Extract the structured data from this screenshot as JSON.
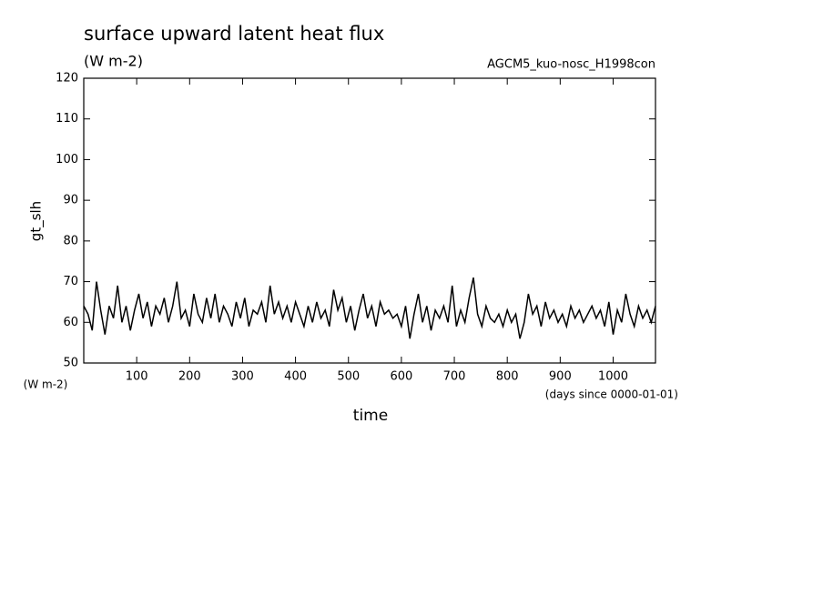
{
  "chart_data": {
    "type": "line",
    "title": "surface upward latent heat flux",
    "subtitle": "(W m-2)",
    "annotation": "AGCM5_kuo-nosc_H1998con",
    "ylabel": "gt_slh",
    "ylabel_units": "(W m-2)",
    "xlabel": "time",
    "xlabel_units": "(days since 0000-01-01)",
    "xlim": [
      0,
      1080
    ],
    "ylim": [
      50,
      120
    ],
    "xticks": [
      100,
      200,
      300,
      400,
      500,
      600,
      700,
      800,
      900,
      1000
    ],
    "yticks": [
      50,
      60,
      70,
      80,
      90,
      100,
      110,
      120
    ],
    "color": "#000000",
    "x": [
      0,
      8,
      16,
      24,
      32,
      40,
      48,
      56,
      64,
      72,
      80,
      88,
      96,
      104,
      112,
      120,
      128,
      136,
      144,
      152,
      160,
      168,
      176,
      184,
      192,
      200,
      208,
      216,
      224,
      232,
      240,
      248,
      256,
      264,
      272,
      280,
      288,
      296,
      304,
      312,
      320,
      328,
      336,
      344,
      352,
      360,
      368,
      376,
      384,
      392,
      400,
      408,
      416,
      424,
      432,
      440,
      448,
      456,
      464,
      472,
      480,
      488,
      496,
      504,
      512,
      520,
      528,
      536,
      544,
      552,
      560,
      568,
      576,
      584,
      592,
      600,
      608,
      616,
      624,
      632,
      640,
      648,
      656,
      664,
      672,
      680,
      688,
      696,
      704,
      712,
      720,
      728,
      736,
      744,
      752,
      760,
      768,
      776,
      784,
      792,
      800,
      808,
      816,
      824,
      832,
      840,
      848,
      856,
      864,
      872,
      880,
      888,
      896,
      904,
      912,
      920,
      928,
      936,
      944,
      952,
      960,
      968,
      976,
      984,
      992,
      1000,
      1008,
      1016,
      1024,
      1032,
      1040,
      1048,
      1056,
      1064,
      1072,
      1080
    ],
    "values": [
      64,
      62,
      58,
      70,
      63,
      57,
      64,
      61,
      69,
      60,
      64,
      58,
      63,
      67,
      61,
      65,
      59,
      64,
      62,
      66,
      60,
      64,
      70,
      61,
      63,
      59,
      67,
      62,
      60,
      66,
      61,
      67,
      60,
      64,
      62,
      59,
      65,
      61,
      66,
      59,
      63,
      62,
      65,
      60,
      69,
      62,
      65,
      61,
      64,
      60,
      65,
      62,
      59,
      64,
      60,
      65,
      61,
      63,
      59,
      68,
      63,
      66,
      60,
      64,
      58,
      63,
      67,
      61,
      64,
      59,
      65,
      62,
      63,
      61,
      62,
      59,
      64,
      56,
      62,
      67,
      60,
      64,
      58,
      63,
      61,
      64,
      60,
      69,
      59,
      63,
      60,
      66,
      71,
      62,
      59,
      64,
      61,
      60,
      62,
      59,
      63,
      60,
      62,
      56,
      60,
      67,
      62,
      64,
      59,
      65,
      61,
      63,
      60,
      62,
      59,
      64,
      61,
      63,
      60,
      62,
      64,
      61,
      63,
      59,
      65,
      57,
      63,
      60,
      67,
      62,
      59,
      64,
      61,
      63,
      60,
      64
    ]
  }
}
